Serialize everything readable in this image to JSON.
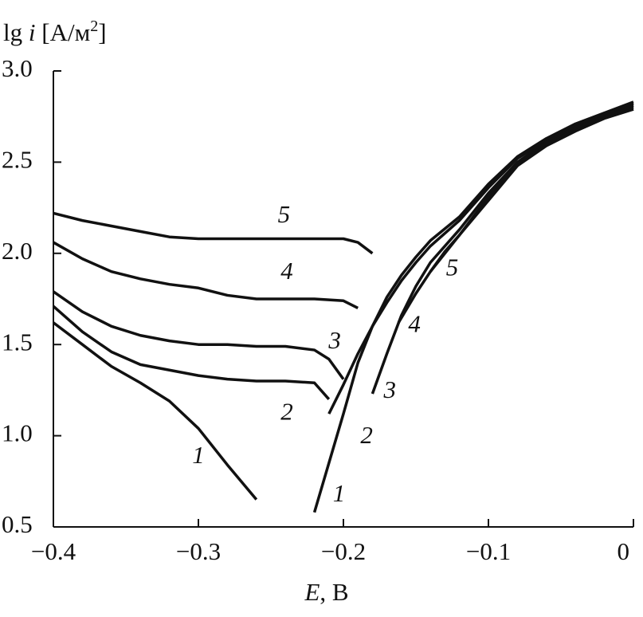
{
  "chart_data": {
    "type": "line",
    "y_label": {
      "prefix": "lg ",
      "variable": "i",
      "unit": " [A/м",
      "exp": "2",
      "close": "]"
    },
    "x_label": {
      "variable": "E",
      "unit": ", В"
    },
    "xlim": [
      -0.4,
      0
    ],
    "ylim": [
      0.5,
      3.0
    ],
    "xticks": [
      {
        "value": -0.4,
        "label": "−0.4"
      },
      {
        "value": -0.3,
        "label": "−0.3"
      },
      {
        "value": -0.2,
        "label": "−0.2"
      },
      {
        "value": -0.1,
        "label": "−0.1"
      },
      0
    ],
    "yticks": [
      0.5,
      {
        "value": 1.0,
        "label": "1.0"
      },
      1.5,
      {
        "value": 2.0,
        "label": "2.0"
      },
      2.5,
      {
        "value": 3.0,
        "label": "3.0"
      }
    ],
    "series": [
      {
        "color": "#111111",
        "x": [
          -0.4,
          -0.38,
          -0.36,
          -0.34,
          -0.32,
          -0.3,
          -0.28,
          -0.26,
          -0.24,
          -0.22,
          -0.2,
          -0.19,
          -0.18
        ],
        "values": [
          2.22,
          2.18,
          2.15,
          2.12,
          2.09,
          2.08,
          2.08,
          2.08,
          2.08,
          2.08,
          2.08,
          2.06,
          2.0
        ]
      },
      {
        "color": "#111111",
        "x": [
          -0.4,
          -0.38,
          -0.36,
          -0.34,
          -0.32,
          -0.3,
          -0.28,
          -0.26,
          -0.24,
          -0.22,
          -0.2,
          -0.19
        ],
        "values": [
          2.06,
          1.97,
          1.9,
          1.86,
          1.83,
          1.81,
          1.77,
          1.75,
          1.75,
          1.75,
          1.74,
          1.7
        ]
      },
      {
        "color": "#111111",
        "x": [
          -0.4,
          -0.38,
          -0.36,
          -0.34,
          -0.32,
          -0.3,
          -0.28,
          -0.26,
          -0.24,
          -0.22,
          -0.21,
          -0.2
        ],
        "values": [
          1.79,
          1.68,
          1.6,
          1.55,
          1.52,
          1.5,
          1.5,
          1.49,
          1.49,
          1.47,
          1.42,
          1.31
        ]
      },
      {
        "color": "#111111",
        "x": [
          -0.4,
          -0.38,
          -0.36,
          -0.34,
          -0.32,
          -0.3,
          -0.28,
          -0.26,
          -0.24,
          -0.22,
          -0.21
        ],
        "values": [
          1.71,
          1.57,
          1.46,
          1.39,
          1.36,
          1.33,
          1.31,
          1.3,
          1.3,
          1.29,
          1.2
        ]
      },
      {
        "color": "#111111",
        "x": [
          -0.4,
          -0.38,
          -0.36,
          -0.34,
          -0.32,
          -0.3,
          -0.28,
          -0.26
        ],
        "values": [
          1.62,
          1.5,
          1.38,
          1.29,
          1.19,
          1.04,
          0.84,
          0.65
        ]
      },
      {
        "color": "#111111",
        "x": [
          -0.22,
          -0.21,
          -0.2,
          -0.19,
          -0.18,
          -0.17,
          -0.16,
          -0.15,
          -0.14,
          -0.12,
          -0.1,
          -0.08,
          -0.06,
          -0.04,
          -0.02,
          0
        ],
        "values": [
          0.58,
          0.85,
          1.12,
          1.4,
          1.6,
          1.76,
          1.88,
          1.98,
          2.07,
          2.2,
          2.38,
          2.53,
          2.63,
          2.71,
          2.77,
          2.83
        ]
      },
      {
        "color": "#111111",
        "x": [
          -0.21,
          -0.2,
          -0.19,
          -0.18,
          -0.17,
          -0.16,
          -0.15,
          -0.14,
          -0.12,
          -0.1,
          -0.08,
          -0.06,
          -0.04,
          -0.02,
          0
        ],
        "values": [
          1.12,
          1.28,
          1.45,
          1.6,
          1.73,
          1.85,
          1.95,
          2.04,
          2.18,
          2.36,
          2.52,
          2.62,
          2.7,
          2.76,
          2.82
        ]
      },
      {
        "color": "#111111",
        "x": [
          -0.18,
          -0.17,
          -0.16,
          -0.15,
          -0.14,
          -0.12,
          -0.1,
          -0.08,
          -0.06,
          -0.04,
          -0.02,
          0
        ],
        "values": [
          1.23,
          1.45,
          1.66,
          1.82,
          1.95,
          2.13,
          2.33,
          2.5,
          2.61,
          2.69,
          2.75,
          2.81
        ]
      },
      {
        "color": "#111111",
        "x": [
          -0.162,
          -0.15,
          -0.14,
          -0.12,
          -0.1,
          -0.08,
          -0.06,
          -0.04,
          -0.02,
          0
        ],
        "values": [
          1.62,
          1.78,
          1.9,
          2.1,
          2.31,
          2.49,
          2.6,
          2.68,
          2.75,
          2.8
        ]
      },
      {
        "color": "#111111",
        "x": [
          -0.14,
          -0.13,
          -0.12,
          -0.1,
          -0.08,
          -0.06,
          -0.04,
          -0.02,
          0
        ],
        "values": [
          1.9,
          2.01,
          2.1,
          2.29,
          2.48,
          2.59,
          2.67,
          2.74,
          2.79
        ]
      }
    ],
    "annotations": [
      {
        "text": "5",
        "x": -0.241,
        "y": 2.2
      },
      {
        "text": "4",
        "x": -0.239,
        "y": 1.89
      },
      {
        "text": "3",
        "x": -0.206,
        "y": 1.51
      },
      {
        "text": "2",
        "x": -0.239,
        "y": 1.12
      },
      {
        "text": "1",
        "x": -0.3,
        "y": 0.88
      },
      {
        "text": "5",
        "x": -0.125,
        "y": 1.91
      },
      {
        "text": "4",
        "x": -0.151,
        "y": 1.6
      },
      {
        "text": "3",
        "x": -0.168,
        "y": 1.24
      },
      {
        "text": "2",
        "x": -0.184,
        "y": 0.99
      },
      {
        "text": "1",
        "x": -0.203,
        "y": 0.67
      }
    ]
  }
}
